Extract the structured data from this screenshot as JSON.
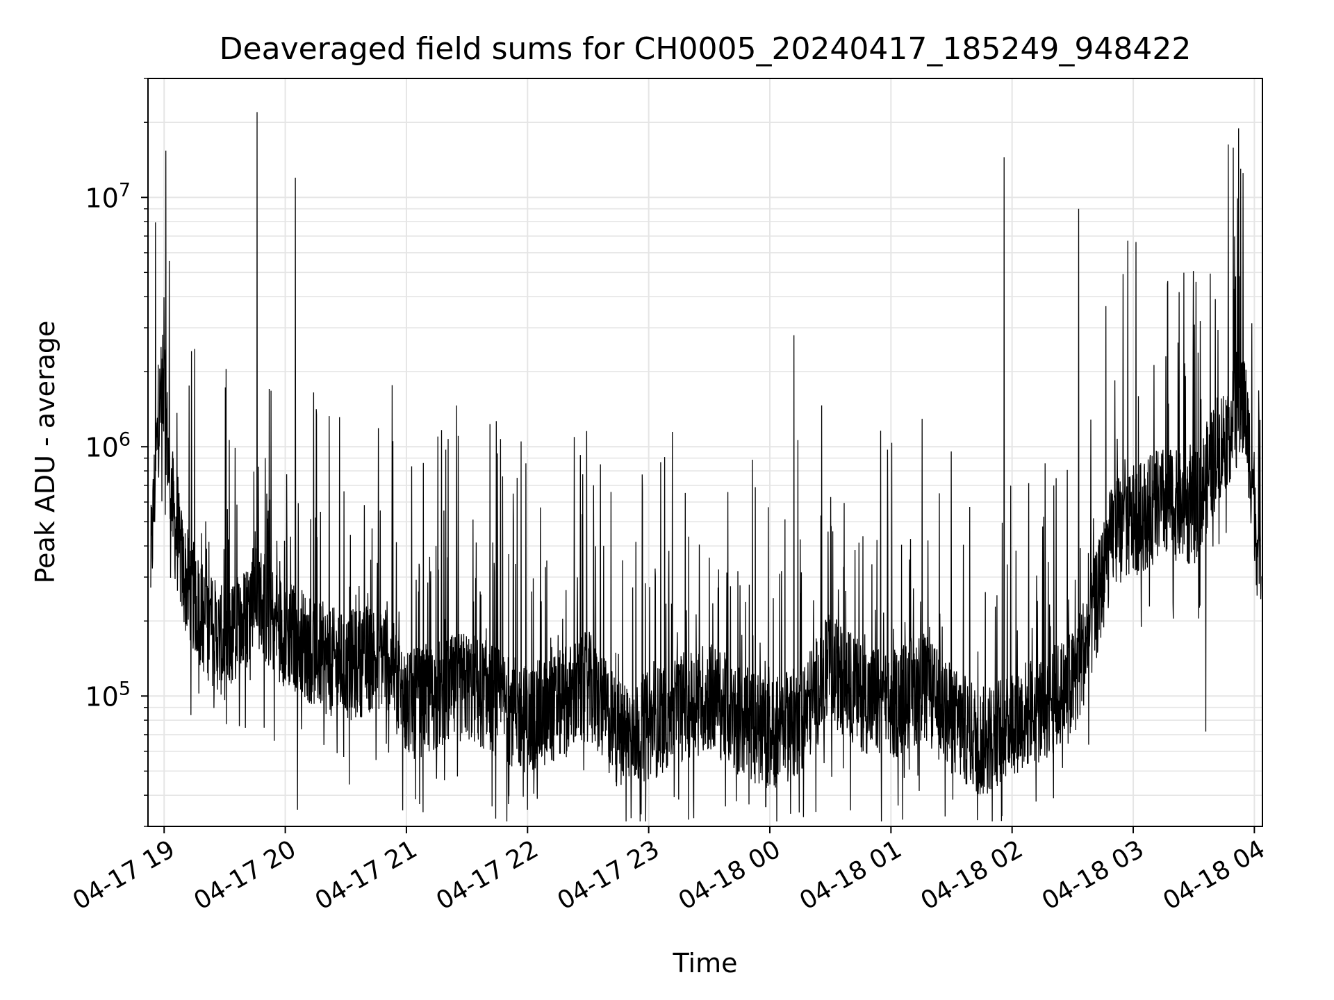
{
  "chart_data": {
    "type": "line",
    "title": "Deaveraged field sums for CH0005_20240417_185249_948422",
    "xlabel": "Time",
    "ylabel": "Peak ADU - average",
    "yscale": "log",
    "ylim": [
      30000,
      30000000
    ],
    "xlim": [
      "2024-04-17 18:52",
      "2024-04-18 04:04"
    ],
    "grid": true,
    "line_color": "#000000",
    "grid_color": "#e5e5e5",
    "x_ticks": [
      {
        "value": "2024-04-17 19:00",
        "label": "04-17 19"
      },
      {
        "value": "2024-04-17 20:00",
        "label": "04-17 20"
      },
      {
        "value": "2024-04-17 21:00",
        "label": "04-17 21"
      },
      {
        "value": "2024-04-17 22:00",
        "label": "04-17 22"
      },
      {
        "value": "2024-04-17 23:00",
        "label": "04-17 23"
      },
      {
        "value": "2024-04-18 00:00",
        "label": "04-18 00"
      },
      {
        "value": "2024-04-18 01:00",
        "label": "04-18 01"
      },
      {
        "value": "2024-04-18 02:00",
        "label": "04-18 02"
      },
      {
        "value": "2024-04-18 03:00",
        "label": "04-18 03"
      },
      {
        "value": "2024-04-18 04:00",
        "label": "04-18 04"
      }
    ],
    "y_ticks": [
      {
        "value": 100000,
        "base": "10",
        "exp": "5"
      },
      {
        "value": 1000000,
        "base": "10",
        "exp": "6"
      },
      {
        "value": 10000000,
        "base": "10",
        "exp": "7"
      }
    ],
    "series": [
      {
        "points": [
          [
            "2024-04-17 18:52",
            200000
          ],
          [
            "2024-04-17 18:54",
            420000
          ],
          [
            "2024-04-17 18:56",
            900000
          ],
          [
            "2024-04-17 18:58",
            1500000
          ],
          [
            "2024-04-17 19:00",
            1800000
          ],
          [
            "2024-04-17 19:02",
            900000
          ],
          [
            "2024-04-17 19:05",
            500000
          ],
          [
            "2024-04-17 19:10",
            300000
          ],
          [
            "2024-04-17 19:20",
            200000
          ],
          [
            "2024-04-17 19:30",
            160000
          ],
          [
            "2024-04-17 19:40",
            200000
          ],
          [
            "2024-04-17 19:45",
            280000
          ],
          [
            "2024-04-17 19:50",
            220000
          ],
          [
            "2024-04-17 20:00",
            180000
          ],
          [
            "2024-04-17 20:10",
            160000
          ],
          [
            "2024-04-17 20:20",
            140000
          ],
          [
            "2024-04-17 20:30",
            130000
          ],
          [
            "2024-04-17 20:40",
            140000
          ],
          [
            "2024-04-17 20:50",
            150000
          ],
          [
            "2024-04-17 21:00",
            90000
          ],
          [
            "2024-04-17 21:15",
            100000
          ],
          [
            "2024-04-17 21:30",
            110000
          ],
          [
            "2024-04-17 21:45",
            95000
          ],
          [
            "2024-04-17 22:00",
            80000
          ],
          [
            "2024-04-17 22:15",
            90000
          ],
          [
            "2024-04-17 22:30",
            110000
          ],
          [
            "2024-04-17 22:45",
            70000
          ],
          [
            "2024-04-17 23:00",
            75000
          ],
          [
            "2024-04-17 23:15",
            90000
          ],
          [
            "2024-04-17 23:30",
            100000
          ],
          [
            "2024-04-17 23:45",
            80000
          ],
          [
            "2024-04-18 00:00",
            70000
          ],
          [
            "2024-04-18 00:15",
            80000
          ],
          [
            "2024-04-18 00:30",
            130000
          ],
          [
            "2024-04-18 00:45",
            100000
          ],
          [
            "2024-04-18 01:00",
            90000
          ],
          [
            "2024-04-18 01:15",
            110000
          ],
          [
            "2024-04-18 01:30",
            80000
          ],
          [
            "2024-04-18 01:45",
            65000
          ],
          [
            "2024-04-18 02:00",
            80000
          ],
          [
            "2024-04-18 02:15",
            90000
          ],
          [
            "2024-04-18 02:30",
            110000
          ],
          [
            "2024-04-18 02:40",
            200000
          ],
          [
            "2024-04-18 02:50",
            450000
          ],
          [
            "2024-04-18 03:00",
            500000
          ],
          [
            "2024-04-18 03:15",
            600000
          ],
          [
            "2024-04-18 03:30",
            550000
          ],
          [
            "2024-04-18 03:40",
            900000
          ],
          [
            "2024-04-18 03:50",
            1300000
          ],
          [
            "2024-04-18 03:55",
            1500000
          ],
          [
            "2024-04-18 04:00",
            600000
          ],
          [
            "2024-04-18 04:04",
            200000
          ]
        ]
      }
    ],
    "spikes": [
      [
        "2024-04-17 19:46",
        22000000
      ],
      [
        "2024-04-17 20:05",
        12000000
      ],
      [
        "2024-04-18 00:12",
        2800000
      ],
      [
        "2024-04-18 01:56",
        14500000
      ],
      [
        "2024-04-18 02:33",
        9000000
      ],
      [
        "2024-04-18 03:50",
        4300000
      ]
    ],
    "dips": [
      [
        "2024-04-17 20:06",
        35000
      ],
      [
        "2024-04-17 22:00",
        35000
      ],
      [
        "2024-04-17 23:58",
        36000
      ],
      [
        "2024-04-18 01:55",
        33000
      ],
      [
        "2024-04-18 03:36",
        72000
      ]
    ]
  }
}
